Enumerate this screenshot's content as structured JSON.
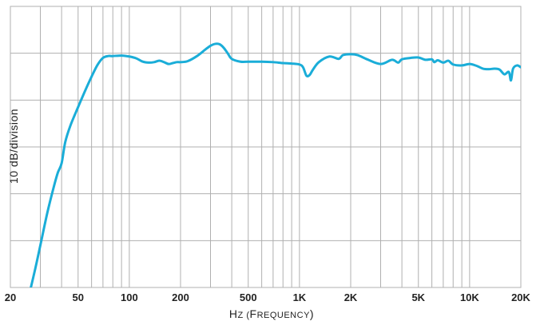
{
  "chart_data": {
    "type": "line",
    "title": "",
    "xlabel": "Hz (Frequency)",
    "ylabel": "10 dB/division",
    "x_scale": "log",
    "xlim": [
      20,
      20000
    ],
    "x_tick_values": [
      20,
      50,
      100,
      200,
      500,
      1000,
      2000,
      5000,
      10000,
      20000
    ],
    "x_tick_labels": [
      "20",
      "50",
      "100",
      "200",
      "500",
      "1K",
      "2K",
      "5K",
      "10K",
      "20K"
    ],
    "ylim": [
      -60,
      0
    ],
    "y_divisions": 6,
    "grid": true,
    "line_color": "#1AADD8",
    "grid_color": "#B0B0B0",
    "series": [
      {
        "x": [
          26,
          28,
          30,
          33,
          36,
          38,
          40,
          42,
          45,
          50,
          55,
          60,
          65,
          70,
          75,
          80,
          90,
          100,
          110,
          120,
          130,
          140,
          150,
          160,
          170,
          180,
          190,
          200,
          220,
          250,
          280,
          300,
          320,
          340,
          360,
          380,
          400,
          450,
          500,
          600,
          700,
          800,
          900,
          1000,
          1050,
          1100,
          1150,
          1200,
          1300,
          1500,
          1700,
          1800,
          2000,
          2200,
          2500,
          3000,
          3500,
          3800,
          4000,
          4500,
          5000,
          5500,
          6000,
          6200,
          6500,
          7000,
          7500,
          8000,
          9000,
          10000,
          11000,
          12000,
          13000,
          14000,
          15000,
          16000,
          17000,
          17500,
          18000,
          19000,
          20000
        ],
        "y": [
          -61,
          -56,
          -51,
          -44,
          -38.5,
          -35.5,
          -33.5,
          -29,
          -25.5,
          -21.5,
          -18,
          -15,
          -12.5,
          -11,
          -10.6,
          -10.6,
          -10.5,
          -10.7,
          -11.1,
          -11.8,
          -12.0,
          -11.9,
          -11.6,
          -11.9,
          -12.3,
          -12.1,
          -11.9,
          -11.9,
          -11.7,
          -10.6,
          -9.2,
          -8.4,
          -8.0,
          -8.1,
          -8.9,
          -10.1,
          -11.2,
          -11.8,
          -11.8,
          -11.8,
          -11.9,
          -12.1,
          -12.2,
          -12.4,
          -13.0,
          -14.8,
          -14.6,
          -13.5,
          -11.9,
          -10.7,
          -11.2,
          -10.4,
          -10.2,
          -10.4,
          -11.3,
          -12.3,
          -11.4,
          -12.0,
          -11.3,
          -11.0,
          -10.9,
          -11.4,
          -11.3,
          -11.9,
          -11.5,
          -12.0,
          -11.6,
          -12.4,
          -12.6,
          -12.3,
          -12.7,
          -13.3,
          -13.4,
          -13.3,
          -13.5,
          -14.5,
          -14.0,
          -15.8,
          -13.3,
          -12.6,
          -13.0
        ]
      }
    ]
  }
}
